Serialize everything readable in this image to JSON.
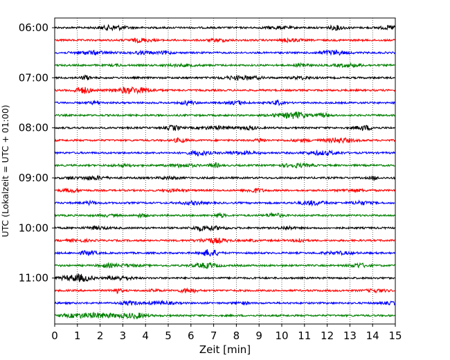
{
  "chart_data": {
    "type": "line",
    "subtype": "helicorder",
    "xlabel": "Zeit  [min]",
    "ylabel": "UTC (Lokalzeit = UTC + 01:00)",
    "xlim": [
      0,
      15
    ],
    "x_ticks": [
      "0",
      "1",
      "2",
      "3",
      "4",
      "5",
      "6",
      "7",
      "8",
      "9",
      "10",
      "11",
      "12",
      "13",
      "14",
      "15"
    ],
    "y_tick_labels": [
      "06:00",
      "07:00",
      "08:00",
      "09:00",
      "10:00",
      "11:00"
    ],
    "trace_interval_minutes": 15,
    "trace_start_times": [
      "06:00",
      "06:15",
      "06:30",
      "06:45",
      "07:00",
      "07:15",
      "07:30",
      "07:45",
      "08:00",
      "08:15",
      "08:30",
      "08:45",
      "09:00",
      "09:15",
      "09:30",
      "09:45",
      "10:00",
      "10:15",
      "10:30",
      "10:45",
      "11:00",
      "11:15",
      "11:30",
      "11:45"
    ],
    "trace_colors": [
      "#000000",
      "#ff0000",
      "#0000ff",
      "#008000"
    ],
    "grid": "vertical dotted"
  }
}
